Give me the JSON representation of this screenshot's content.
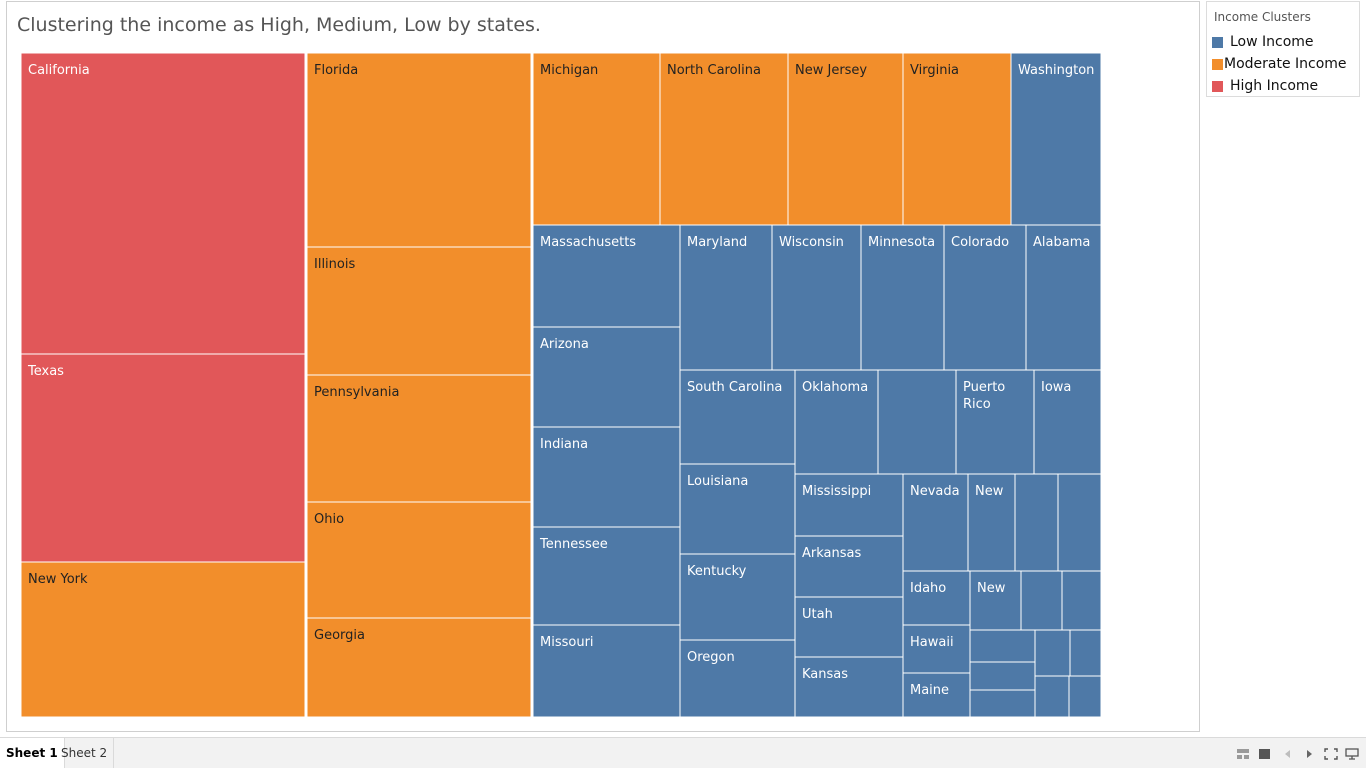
{
  "title": "Clustering the income as High, Medium, Low by states.",
  "legend": {
    "title": "Income Clusters",
    "items": [
      {
        "label": "Low Income",
        "color": "#4e79a7"
      },
      {
        "label": "Moderate Income",
        "color": "#f28e2b"
      },
      {
        "label": "High Income",
        "color": "#e15759"
      }
    ]
  },
  "sheets": [
    {
      "label": "Sheet 1",
      "active": true
    },
    {
      "label": "Sheet 2",
      "active": false
    }
  ],
  "bottom_icons": [
    "grid-view-icon",
    "single-view-icon",
    "prev-arrow-icon",
    "next-arrow-icon",
    "fullscreen-icon",
    "presentation-icon"
  ],
  "chart_data": {
    "type": "treemap",
    "title": "Clustering the income as High, Medium, Low by states.",
    "legend_title": "Income Clusters",
    "legend_position": "top-right",
    "categories": [
      "California",
      "Texas",
      "New York",
      "Florida",
      "Illinois",
      "Pennsylvania",
      "Ohio",
      "Georgia",
      "Michigan",
      "North Carolina",
      "New Jersey",
      "Virginia",
      "Washington",
      "Massachusetts",
      "Arizona",
      "Indiana",
      "Tennessee",
      "Missouri",
      "Maryland",
      "Wisconsin",
      "Minnesota",
      "Colorado",
      "Alabama",
      "South Carolina",
      "Oklahoma",
      "Puerto Rico",
      "Iowa",
      "Louisiana",
      "Kentucky",
      "Oregon",
      "Mississippi",
      "Arkansas",
      "Utah",
      "Kansas",
      "Nevada",
      "New",
      "Idaho",
      "Hawaii",
      "Maine",
      "New"
    ],
    "series": [
      {
        "name": "High Income",
        "color": "#e15759",
        "states": [
          "California",
          "Texas"
        ]
      },
      {
        "name": "Moderate Income",
        "color": "#f28e2b",
        "states": [
          "New York",
          "Florida",
          "Illinois",
          "Pennsylvania",
          "Ohio",
          "Georgia",
          "Michigan",
          "North Carolina",
          "New Jersey",
          "Virginia"
        ]
      },
      {
        "name": "Low Income",
        "color": "#4e79a7",
        "states": [
          "Washington",
          "Massachusetts",
          "Arizona",
          "Indiana",
          "Tennessee",
          "Missouri",
          "Maryland",
          "Wisconsin",
          "Minnesota",
          "Colorado",
          "Alabama",
          "South Carolina",
          "Oklahoma",
          "Puerto Rico",
          "Iowa",
          "Louisiana",
          "Kentucky",
          "Oregon",
          "Mississippi",
          "Arkansas",
          "Utah",
          "Kansas",
          "Nevada",
          "New",
          "Idaho",
          "Hawaii",
          "Maine",
          "New"
        ]
      }
    ]
  }
}
